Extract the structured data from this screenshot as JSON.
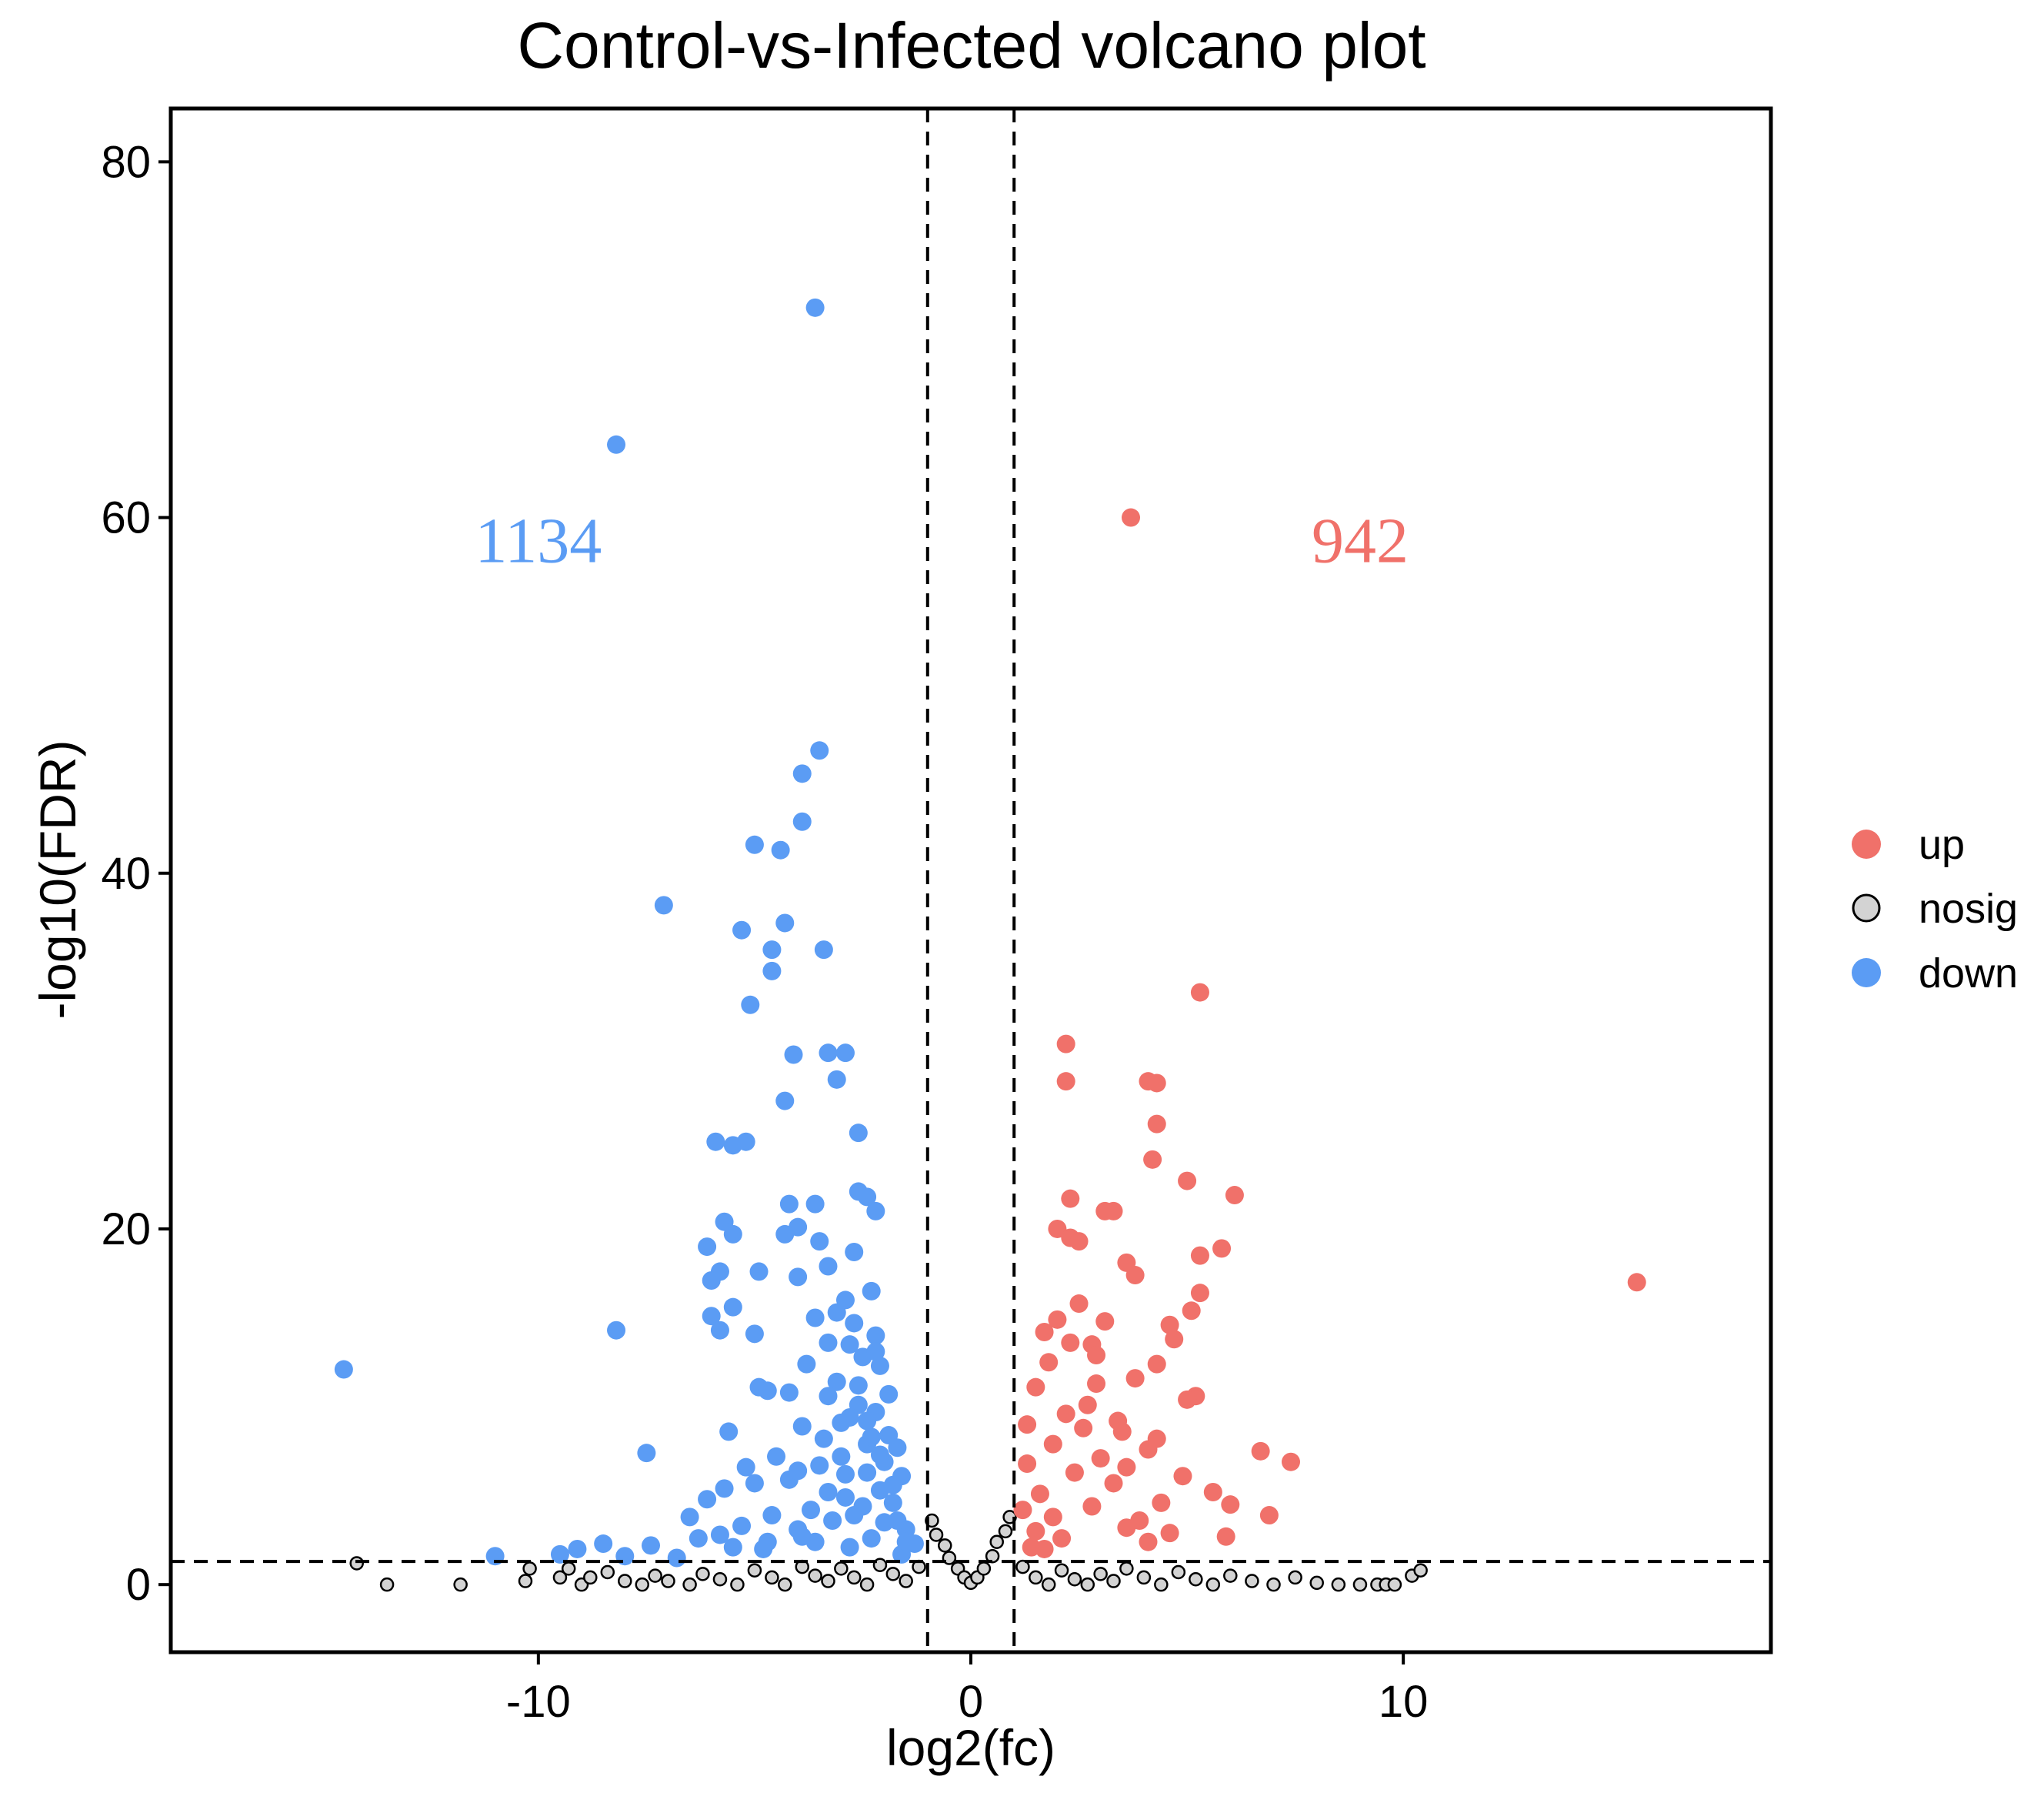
{
  "chart_data": {
    "type": "scatter",
    "title": "Control-vs-Infected volcano plot",
    "xlabel": "log2(fc)",
    "ylabel": "-log10(FDR)",
    "xlim": [
      -18.5,
      18.5
    ],
    "ylim": [
      -3.8,
      83
    ],
    "x_ticks": [
      -10,
      0,
      10
    ],
    "y_ticks": [
      0,
      20,
      40,
      60,
      80
    ],
    "thresholds": {
      "log2fc": [
        -1,
        1
      ],
      "neg_log10_fdr": 1.3
    },
    "annotations": [
      {
        "text": "1134",
        "series": "down",
        "x": -10.0,
        "y": 57.5
      },
      {
        "text": "942",
        "series": "up",
        "x": 9.0,
        "y": 57.5
      }
    ],
    "colors": {
      "up": "#f0716a",
      "down": "#5b9cf4",
      "nosig": "#000000",
      "nosig_fill": "#d3d3d3"
    },
    "legend": {
      "position": "right",
      "entries": [
        "up",
        "nosig",
        "down"
      ]
    },
    "series": [
      {
        "name": "up",
        "points": [
          [
            3.7,
            60
          ],
          [
            5.3,
            33.3
          ],
          [
            2.2,
            30.4
          ],
          [
            2.2,
            28.3
          ],
          [
            4.1,
            28.3
          ],
          [
            4.3,
            28.2
          ],
          [
            4.3,
            25.9
          ],
          [
            4.2,
            23.9
          ],
          [
            5.0,
            22.7
          ],
          [
            6.1,
            21.9
          ],
          [
            2.3,
            21.7
          ],
          [
            3.1,
            21
          ],
          [
            3.3,
            21
          ],
          [
            2.0,
            20
          ],
          [
            2.3,
            19.5
          ],
          [
            2.5,
            19.3
          ],
          [
            5.8,
            18.9
          ],
          [
            5.3,
            18.5
          ],
          [
            3.6,
            18.1
          ],
          [
            3.8,
            17.4
          ],
          [
            15.4,
            17
          ],
          [
            5.3,
            16.4
          ],
          [
            5.1,
            15.4
          ],
          [
            2.5,
            15.8
          ],
          [
            2.0,
            14.9
          ],
          [
            1.7,
            14.2
          ],
          [
            3.1,
            14.8
          ],
          [
            4.6,
            14.6
          ],
          [
            4.7,
            13.8
          ],
          [
            2.8,
            13.5
          ],
          [
            4.3,
            12.4
          ],
          [
            1.8,
            12.5
          ],
          [
            5.2,
            10.6
          ],
          [
            5.0,
            10.4
          ],
          [
            1.5,
            11.1
          ],
          [
            2.9,
            11.3
          ],
          [
            3.4,
            9.2
          ],
          [
            4.3,
            8.2
          ],
          [
            6.7,
            7.5
          ],
          [
            7.4,
            6.9
          ],
          [
            4.9,
            6.1
          ],
          [
            5.6,
            5.2
          ],
          [
            6.0,
            4.5
          ],
          [
            6.9,
            3.9
          ],
          [
            5.9,
            2.7
          ],
          [
            2.2,
            9.6
          ],
          [
            2.6,
            8.8
          ],
          [
            1.9,
            7.9
          ],
          [
            3.0,
            7.1
          ],
          [
            2.4,
            6.3
          ],
          [
            3.3,
            5.7
          ],
          [
            1.6,
            5.1
          ],
          [
            2.8,
            4.4
          ],
          [
            1.9,
            3.8
          ],
          [
            3.6,
            3.2
          ],
          [
            2.1,
            2.6
          ],
          [
            4.1,
            2.4
          ],
          [
            1.4,
            2.1
          ],
          [
            4.6,
            2.9
          ],
          [
            3.9,
            3.6
          ],
          [
            4.4,
            4.6
          ],
          [
            3.6,
            6.6
          ],
          [
            4.1,
            7.6
          ],
          [
            3.5,
            8.6
          ],
          [
            2.7,
            10.1
          ],
          [
            3.8,
            11.6
          ],
          [
            2.9,
            12.9
          ],
          [
            2.3,
            13.6
          ],
          [
            1.3,
            9.0
          ],
          [
            1.3,
            6.8
          ],
          [
            1.2,
            4.2
          ],
          [
            1.5,
            3.0
          ],
          [
            1.7,
            2.0
          ]
        ]
      },
      {
        "name": "down",
        "points": [
          [
            -3.6,
            71.8
          ],
          [
            -8.2,
            64.1
          ],
          [
            -3.5,
            46.9
          ],
          [
            -3.9,
            45.6
          ],
          [
            -3.9,
            42.9
          ],
          [
            -5.0,
            41.6
          ],
          [
            -4.4,
            41.3
          ],
          [
            -7.1,
            38.2
          ],
          [
            -4.3,
            37.2
          ],
          [
            -5.3,
            36.8
          ],
          [
            -4.6,
            35.7
          ],
          [
            -3.4,
            35.7
          ],
          [
            -4.6,
            34.5
          ],
          [
            -5.1,
            32.6
          ],
          [
            -4.1,
            29.8
          ],
          [
            -3.3,
            29.9
          ],
          [
            -2.9,
            29.9
          ],
          [
            -3.1,
            28.4
          ],
          [
            -4.3,
            27.2
          ],
          [
            -2.6,
            25.4
          ],
          [
            -5.9,
            24.9
          ],
          [
            -5.5,
            24.7
          ],
          [
            -5.2,
            24.9
          ],
          [
            -2.6,
            22.1
          ],
          [
            -2.4,
            21.8
          ],
          [
            -3.6,
            21.4
          ],
          [
            -4.2,
            21.4
          ],
          [
            -2.2,
            21
          ],
          [
            -5.7,
            20.4
          ],
          [
            -4.0,
            20.1
          ],
          [
            -4.3,
            19.7
          ],
          [
            -3.5,
            19.3
          ],
          [
            -5.5,
            19.7
          ],
          [
            -6.1,
            19
          ],
          [
            -2.7,
            18.7
          ],
          [
            -3.3,
            17.9
          ],
          [
            -4.0,
            17.3
          ],
          [
            -4.9,
            17.6
          ],
          [
            -5.8,
            17.6
          ],
          [
            -6.0,
            17.1
          ],
          [
            -2.3,
            16.5
          ],
          [
            -2.9,
            16
          ],
          [
            -5.5,
            15.6
          ],
          [
            -6.0,
            15.1
          ],
          [
            -3.6,
            15
          ],
          [
            -8.2,
            14.3
          ],
          [
            -5.0,
            14.1
          ],
          [
            -5.8,
            14.3
          ],
          [
            -2.2,
            14
          ],
          [
            -2.8,
            13.5
          ],
          [
            -2.5,
            12.8
          ],
          [
            -14.5,
            12.1
          ],
          [
            -2.1,
            12.3
          ],
          [
            -3.1,
            11.4
          ],
          [
            -3.3,
            10.6
          ],
          [
            -4.9,
            11.1
          ],
          [
            -4.7,
            10.9
          ],
          [
            -4.2,
            10.8
          ],
          [
            -7.5,
            7.4
          ],
          [
            -5.6,
            8.6
          ],
          [
            -3.9,
            8.9
          ],
          [
            -2.6,
            10.1
          ],
          [
            -2.8,
            9.4
          ],
          [
            -2.2,
            9.7
          ],
          [
            -1.9,
            8.4
          ],
          [
            -1.7,
            7.7
          ],
          [
            -2.4,
            7.9
          ],
          [
            -3.0,
            7.2
          ],
          [
            -3.5,
            6.7
          ],
          [
            -2.0,
            6.9
          ],
          [
            -1.6,
            6.1
          ],
          [
            -2.4,
            6.3
          ],
          [
            -4.2,
            5.9
          ],
          [
            -5.7,
            5.4
          ],
          [
            -5.0,
            5.7
          ],
          [
            -6.1,
            4.8
          ],
          [
            -3.3,
            5.2
          ],
          [
            -2.9,
            4.9
          ],
          [
            -2.1,
            5.3
          ],
          [
            -1.8,
            4.6
          ],
          [
            -2.5,
            4.4
          ],
          [
            -3.7,
            4.2
          ],
          [
            -4.6,
            3.9
          ],
          [
            -6.5,
            3.8
          ],
          [
            -5.3,
            3.3
          ],
          [
            -3.2,
            3.6
          ],
          [
            -2.7,
            3.9
          ],
          [
            -2.0,
            3.5
          ],
          [
            -1.5,
            3.1
          ],
          [
            -4.0,
            3.1
          ],
          [
            -5.8,
            2.8
          ],
          [
            -6.3,
            2.6
          ],
          [
            -7.4,
            2.2
          ],
          [
            -8.5,
            2.3
          ],
          [
            -9.1,
            2.0
          ],
          [
            -9.5,
            1.7
          ],
          [
            -8.0,
            1.6
          ],
          [
            -11.0,
            1.6
          ],
          [
            -3.6,
            2.4
          ],
          [
            -2.3,
            2.6
          ],
          [
            -1.3,
            2.3
          ],
          [
            -1.6,
            1.7
          ],
          [
            -4.8,
            2.0
          ],
          [
            -6.8,
            1.5
          ],
          [
            -2.3,
            8.3
          ],
          [
            -2.6,
            11.2
          ],
          [
            -2.2,
            13.1
          ],
          [
            -1.9,
            10.7
          ],
          [
            -3.8,
            12.4
          ],
          [
            -3.1,
            15.3
          ],
          [
            -3.3,
            13.6
          ],
          [
            -2.7,
            14.7
          ],
          [
            -3.0,
            9.1
          ],
          [
            -2.4,
            9.2
          ],
          [
            -2.1,
            7.3
          ],
          [
            -1.8,
            5.6
          ],
          [
            -1.7,
            3.6
          ],
          [
            -2.9,
            6.2
          ],
          [
            -3.4,
            8.2
          ],
          [
            -4.0,
            6.4
          ],
          [
            -4.5,
            7.2
          ],
          [
            -5.2,
            6.6
          ],
          [
            -1.5,
            2.4
          ],
          [
            -2.8,
            2.1
          ],
          [
            -3.9,
            2.7
          ],
          [
            -4.7,
            2.4
          ],
          [
            -5.5,
            2.1
          ]
        ]
      },
      {
        "name": "nosig",
        "points": [
          [
            -14.2,
            1.2
          ],
          [
            -13.5,
            0.0
          ],
          [
            -11.8,
            0.0
          ],
          [
            -10.3,
            0.2
          ],
          [
            -10.2,
            0.9
          ],
          [
            -9.5,
            0.4
          ],
          [
            -9.3,
            0.9
          ],
          [
            -9.0,
            0.0
          ],
          [
            -8.8,
            0.4
          ],
          [
            -8.4,
            0.7
          ],
          [
            -8.0,
            0.2
          ],
          [
            -7.6,
            0.0
          ],
          [
            -7.3,
            0.5
          ],
          [
            -7.0,
            0.2
          ],
          [
            -6.5,
            0.0
          ],
          [
            -6.2,
            0.6
          ],
          [
            -5.8,
            0.3
          ],
          [
            -5.4,
            0.0
          ],
          [
            -5.0,
            0.8
          ],
          [
            -4.6,
            0.4
          ],
          [
            -4.3,
            0.0
          ],
          [
            -3.9,
            1.0
          ],
          [
            -3.6,
            0.5
          ],
          [
            -3.3,
            0.2
          ],
          [
            -3.0,
            0.9
          ],
          [
            -2.7,
            0.4
          ],
          [
            -2.4,
            0.0
          ],
          [
            -2.1,
            1.1
          ],
          [
            -1.8,
            0.6
          ],
          [
            -1.5,
            0.2
          ],
          [
            -1.2,
            1.0
          ],
          [
            -0.9,
            3.6
          ],
          [
            -0.8,
            2.8
          ],
          [
            -0.6,
            2.2
          ],
          [
            -0.5,
            1.5
          ],
          [
            -0.3,
            0.9
          ],
          [
            -0.15,
            0.4
          ],
          [
            0.0,
            0.1
          ],
          [
            0.15,
            0.4
          ],
          [
            0.3,
            0.9
          ],
          [
            0.5,
            1.6
          ],
          [
            0.6,
            2.4
          ],
          [
            0.8,
            3.0
          ],
          [
            0.9,
            3.8
          ],
          [
            1.2,
            1.0
          ],
          [
            1.5,
            0.4
          ],
          [
            1.8,
            0.0
          ],
          [
            2.1,
            0.8
          ],
          [
            2.4,
            0.3
          ],
          [
            2.7,
            0.0
          ],
          [
            3.0,
            0.6
          ],
          [
            3.3,
            0.2
          ],
          [
            3.6,
            0.9
          ],
          [
            4.0,
            0.4
          ],
          [
            4.4,
            0.0
          ],
          [
            4.8,
            0.7
          ],
          [
            5.2,
            0.3
          ],
          [
            5.6,
            0.0
          ],
          [
            6.0,
            0.5
          ],
          [
            6.5,
            0.2
          ],
          [
            7.0,
            0.0
          ],
          [
            7.5,
            0.4
          ],
          [
            8.0,
            0.1
          ],
          [
            8.5,
            0.0
          ],
          [
            9.0,
            0.0
          ],
          [
            9.4,
            0.0
          ],
          [
            9.6,
            0.0
          ],
          [
            9.8,
            0.0
          ],
          [
            10.2,
            0.5
          ],
          [
            10.4,
            0.8
          ]
        ]
      }
    ]
  }
}
